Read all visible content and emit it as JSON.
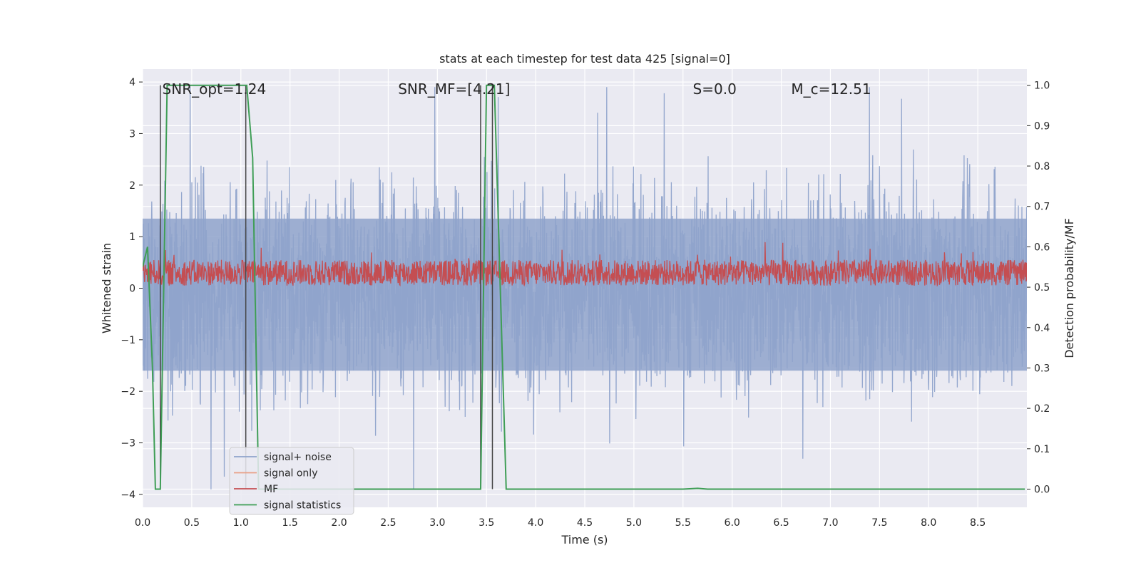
{
  "chart_data": {
    "type": "line",
    "title": "stats at each timestep for test data 425 [signal=0]",
    "xlabel": "Time (s)",
    "ylabel": "Whitened strain",
    "ylabel_right": "Detection probability/MF",
    "xlim": [
      0.0,
      9.0
    ],
    "ylim": [
      -4.25,
      4.25
    ],
    "ylim_right": [
      -0.045,
      1.04
    ],
    "x_ticks": [
      0.0,
      0.5,
      1.0,
      1.5,
      2.0,
      2.5,
      3.0,
      3.5,
      4.0,
      4.5,
      5.0,
      5.5,
      6.0,
      6.5,
      7.0,
      7.5,
      8.0,
      8.5
    ],
    "x_tick_labels": [
      "0.0",
      "0.5",
      "1.0",
      "1.5",
      "2.0",
      "2.5",
      "3.0",
      "3.5",
      "4.0",
      "4.5",
      "5.0",
      "5.5",
      "6.0",
      "6.5",
      "7.0",
      "7.5",
      "8.0",
      "8.5"
    ],
    "y_ticks": [
      -4,
      -3,
      -2,
      -1,
      0,
      1,
      2,
      3,
      4
    ],
    "y_tick_labels": [
      "−4",
      "−3",
      "−2",
      "−1",
      "0",
      "1",
      "2",
      "3",
      "4"
    ],
    "y_right_ticks": [
      0.0,
      0.1,
      0.2,
      0.3,
      0.4,
      0.5,
      0.6,
      0.7,
      0.8,
      0.9,
      1.0
    ],
    "y_right_tick_labels": [
      "0.0",
      "0.1",
      "0.2",
      "0.3",
      "0.4",
      "0.5",
      "0.6",
      "0.7",
      "0.8",
      "0.9",
      "1.0"
    ],
    "annotations": [
      {
        "text": "SNR_opt=1.24",
        "x": 0.2,
        "y": 3.85
      },
      {
        "text": "SNR_MF=[4.21]",
        "x": 2.6,
        "y": 3.85
      },
      {
        "text": "S=0.0",
        "x": 5.6,
        "y": 3.85
      },
      {
        "text": "M_c=12.51",
        "x": 6.6,
        "y": 3.85
      }
    ],
    "series": [
      {
        "name": "signal+ noise",
        "color": "#8fa3cb",
        "axis": "left",
        "style": "noise band",
        "approx_envelope": {
          "center": 0.0,
          "typical_abs": 1.5,
          "max_abs": 3.9
        }
      },
      {
        "name": "signal only",
        "color": "#e8a087",
        "axis": "left",
        "values": "all zero (signal=0)"
      },
      {
        "name": "MF",
        "color": "#c44e52",
        "axis": "left",
        "style": "noise band",
        "approx_envelope": {
          "min": 0.05,
          "typical_max": 0.6,
          "max": 1.0
        }
      },
      {
        "name": "signal statistics",
        "color": "#3f9e56",
        "axis": "right",
        "x": [
          0.0,
          0.05,
          0.1,
          0.13,
          0.18,
          0.25,
          1.06,
          1.12,
          1.18,
          3.4,
          3.44,
          3.5,
          3.58,
          3.7,
          5.5,
          5.65,
          5.75,
          8.98
        ],
        "values": [
          0.55,
          0.6,
          0.3,
          0.0,
          0.0,
          1.0,
          1.0,
          0.82,
          0.0,
          0.0,
          0.0,
          1.0,
          1.0,
          0.0,
          0.0,
          0.002,
          0.0,
          0.0
        ]
      }
    ],
    "vertical_lines": [
      {
        "x": 0.18,
        "color": "#444444"
      },
      {
        "x": 1.05,
        "color": "#444444"
      },
      {
        "x": 3.44,
        "color": "#444444"
      },
      {
        "x": 3.56,
        "color": "#444444"
      }
    ],
    "legend": {
      "position": "lower-left",
      "entries": [
        {
          "label": "signal+ noise",
          "color": "#8fa3cb"
        },
        {
          "label": "signal only",
          "color": "#e8a087"
        },
        {
          "label": "MF",
          "color": "#c44e52"
        },
        {
          "label": "signal statistics",
          "color": "#3f9e56"
        }
      ]
    },
    "grid": true
  }
}
